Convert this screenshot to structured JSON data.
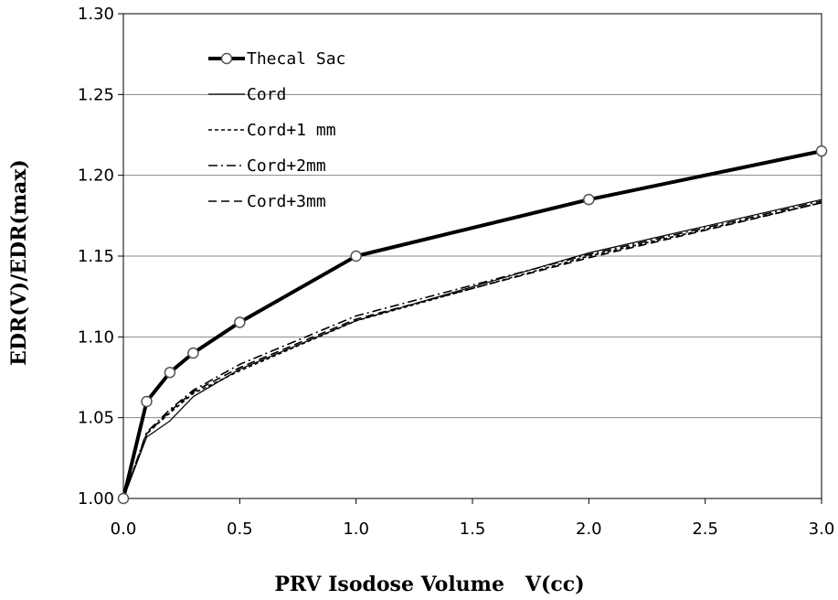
{
  "chart_data": {
    "type": "line",
    "xlabel": "PRV Isodose Volume   V(cc)",
    "ylabel": "EDR(V)/EDR(max)",
    "xlim": [
      0.0,
      3.0
    ],
    "ylim": [
      1.0,
      1.3
    ],
    "x_ticks": [
      "0.0",
      "0.5",
      "1.0",
      "1.5",
      "2.0",
      "2.5",
      "3.0"
    ],
    "y_ticks": [
      "1.00",
      "1.05",
      "1.10",
      "1.15",
      "1.20",
      "1.25",
      "1.30"
    ],
    "grid": "horizontal",
    "legend_position": "top-left",
    "series": [
      {
        "name": "Thecal Sac",
        "style": "thick-solid-circle",
        "x": [
          0.0,
          0.1,
          0.2,
          0.3,
          0.5,
          1.0,
          2.0,
          3.0
        ],
        "y": [
          1.0,
          1.06,
          1.078,
          1.09,
          1.109,
          1.15,
          1.185,
          1.215
        ]
      },
      {
        "name": "Cord",
        "style": "solid",
        "x": [
          0.0,
          0.1,
          0.2,
          0.3,
          0.5,
          1.0,
          2.0,
          3.0
        ],
        "y": [
          1.0,
          1.038,
          1.048,
          1.063,
          1.08,
          1.11,
          1.152,
          1.185
        ]
      },
      {
        "name": "Cord+1 mm",
        "style": "short-dash",
        "x": [
          0.0,
          0.1,
          0.2,
          0.3,
          0.5,
          1.0,
          2.0,
          3.0
        ],
        "y": [
          1.0,
          1.04,
          1.053,
          1.065,
          1.079,
          1.11,
          1.15,
          1.183
        ]
      },
      {
        "name": "Cord+2mm",
        "style": "dash-dot",
        "x": [
          0.0,
          0.1,
          0.2,
          0.3,
          0.5,
          1.0,
          2.0,
          3.0
        ],
        "y": [
          1.0,
          1.041,
          1.055,
          1.067,
          1.083,
          1.113,
          1.151,
          1.184
        ]
      },
      {
        "name": "Cord+3mm",
        "style": "long-dash",
        "x": [
          0.0,
          0.1,
          0.2,
          0.3,
          0.5,
          1.0,
          2.0,
          3.0
        ],
        "y": [
          1.0,
          1.04,
          1.054,
          1.066,
          1.081,
          1.111,
          1.149,
          1.183
        ]
      }
    ]
  }
}
